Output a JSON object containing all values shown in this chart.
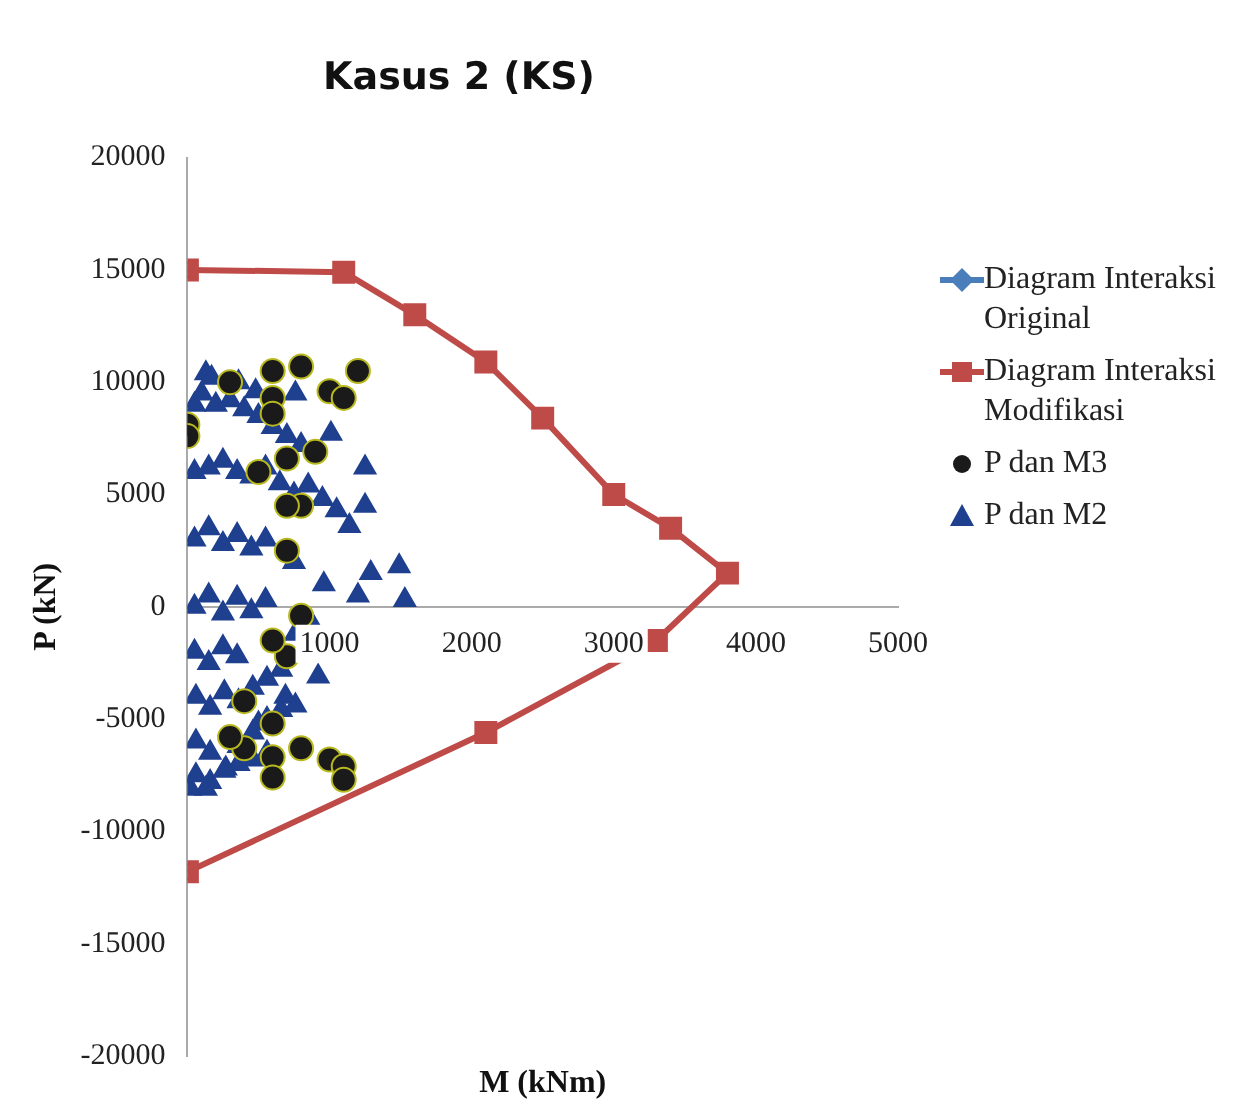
{
  "chart_data": {
    "type": "scatter",
    "title": "Kasus 2 (KS)",
    "xlabel": "M (kNm)",
    "ylabel": "P (kN)",
    "xlim": [
      0,
      5000
    ],
    "xticks": [
      1000,
      2000,
      3000,
      4000,
      5000
    ],
    "ylim": [
      -20000,
      20000
    ],
    "yticks": [
      -20000,
      -15000,
      -10000,
      -5000,
      0,
      5000,
      10000,
      15000,
      20000
    ],
    "grid": false,
    "legend": "right",
    "series": [
      {
        "name": "Diagram Interaksi Original",
        "type": "line",
        "marker": "diamond",
        "color": "#4a7ebb"
      },
      {
        "name": "Diagram Interaksi Modifikasi",
        "type": "line",
        "marker": "square",
        "color": "#be4b48",
        "x": [
          0,
          1100,
          1600,
          2100,
          2500,
          3000,
          3400,
          3800,
          3300,
          2100,
          0
        ],
        "values": [
          15000,
          14900,
          13000,
          10900,
          8400,
          5000,
          3500,
          1500,
          -1500,
          -5600,
          -11800
        ]
      },
      {
        "name": "P dan M3",
        "marker": "circle",
        "color": "#1a1a1a",
        "x": [
          300,
          600,
          600,
          600,
          800,
          1000,
          1100,
          1200,
          900,
          700,
          800,
          700,
          600,
          400,
          600,
          600,
          800,
          1000,
          1100,
          1100,
          300,
          0,
          0,
          700,
          800,
          500,
          700,
          400,
          600
        ],
        "values": [
          10000,
          10500,
          9300,
          8600,
          10700,
          9600,
          9300,
          10500,
          6900,
          6600,
          4500,
          4500,
          -5200,
          -6300,
          -6700,
          -7600,
          -6300,
          -6800,
          -7100,
          -7700,
          -5800,
          8100,
          7600,
          -2200,
          -400,
          6000,
          2500,
          -4200,
          -1500
        ]
      },
      {
        "name": "P dan M2",
        "marker": "triangle",
        "color": "#1f3f8f",
        "x": [
          130,
          170,
          360,
          480,
          760,
          1010,
          1250,
          1250,
          1140,
          1490,
          1530,
          1290,
          1200,
          920,
          690,
          500,
          270,
          130,
          20,
          50,
          100,
          200,
          300,
          400,
          500,
          600,
          700,
          800,
          50,
          150,
          250,
          350,
          450,
          550,
          650,
          750,
          850,
          950,
          1050,
          50,
          150,
          250,
          350,
          450,
          550,
          750,
          50,
          150,
          250,
          350,
          450,
          550,
          50,
          150,
          250,
          350,
          60,
          160,
          260,
          360,
          460,
          560,
          660,
          760,
          860,
          960,
          60,
          160,
          360,
          460,
          560,
          660,
          760,
          60,
          160,
          260,
          360,
          460,
          560
        ],
        "values": [
          10400,
          10200,
          10000,
          9600,
          9500,
          7700,
          6200,
          4500,
          3600,
          1800,
          300,
          1500,
          500,
          -3100,
          -4000,
          -5200,
          -7200,
          -8100,
          -8100,
          9000,
          9500,
          9000,
          9200,
          8800,
          8500,
          8000,
          7600,
          7200,
          6000,
          6200,
          6500,
          6000,
          5800,
          6200,
          5500,
          5000,
          5400,
          4800,
          4300,
          3000,
          3500,
          2800,
          3200,
          2600,
          3000,
          2000,
          0,
          500,
          -300,
          400,
          -200,
          300,
          -2000,
          -2500,
          -1800,
          -2200,
          -4000,
          -4500,
          -3800,
          -4200,
          -3600,
          -3200,
          -2800,
          -1200,
          -600,
          1000,
          -6000,
          -6500,
          -6200,
          -5600,
          -5000,
          -4600,
          -4400,
          -7500,
          -7800,
          -7300,
          -7000,
          -6800,
          -6500
        ]
      }
    ]
  }
}
